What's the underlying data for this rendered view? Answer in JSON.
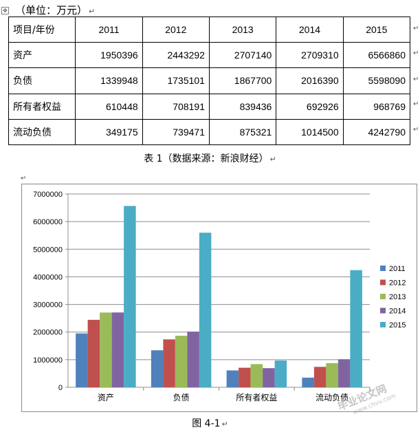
{
  "doc": {
    "unit_label": "（单位：万元）",
    "table_caption": "表 1（数据来源：新浪财经）",
    "figure_caption": "图 4-1",
    "watermark": "毕业论文网",
    "watermark_url": "www.chvv.com"
  },
  "table": {
    "header": [
      "项目/年份",
      "2011",
      "2012",
      "2013",
      "2014",
      "2015"
    ],
    "rows": [
      [
        "资产",
        "1950396",
        "2443292",
        "2707140",
        "2709310",
        "6566860"
      ],
      [
        "负债",
        "1339948",
        "1735101",
        "1867700",
        "2016390",
        "5598090"
      ],
      [
        "所有者权益",
        "610448",
        "708191",
        "839436",
        "692926",
        "968769"
      ],
      [
        "流动负债",
        "349175",
        "739471",
        "875321",
        "1014500",
        "4242790"
      ]
    ]
  },
  "chart_data": {
    "type": "bar",
    "categories": [
      "资产",
      "负债",
      "所有者权益",
      "流动负债"
    ],
    "series": [
      {
        "name": "2011",
        "color": "#4F81BD",
        "values": [
          1950396,
          1339948,
          610448,
          349175
        ]
      },
      {
        "name": "2012",
        "color": "#C0504D",
        "values": [
          2443292,
          1735101,
          708191,
          739471
        ]
      },
      {
        "name": "2013",
        "color": "#9BBB59",
        "values": [
          2707140,
          1867700,
          839436,
          875321
        ]
      },
      {
        "name": "2014",
        "color": "#8064A2",
        "values": [
          2709310,
          2016390,
          692926,
          1014500
        ]
      },
      {
        "name": "2015",
        "color": "#4BACC6",
        "values": [
          6566860,
          5598090,
          968769,
          4242790
        ]
      }
    ],
    "ylim": [
      0,
      7000000
    ],
    "yticks": [
      0,
      1000000,
      2000000,
      3000000,
      4000000,
      5000000,
      6000000,
      7000000
    ],
    "grid": true,
    "legend_position": "right"
  }
}
